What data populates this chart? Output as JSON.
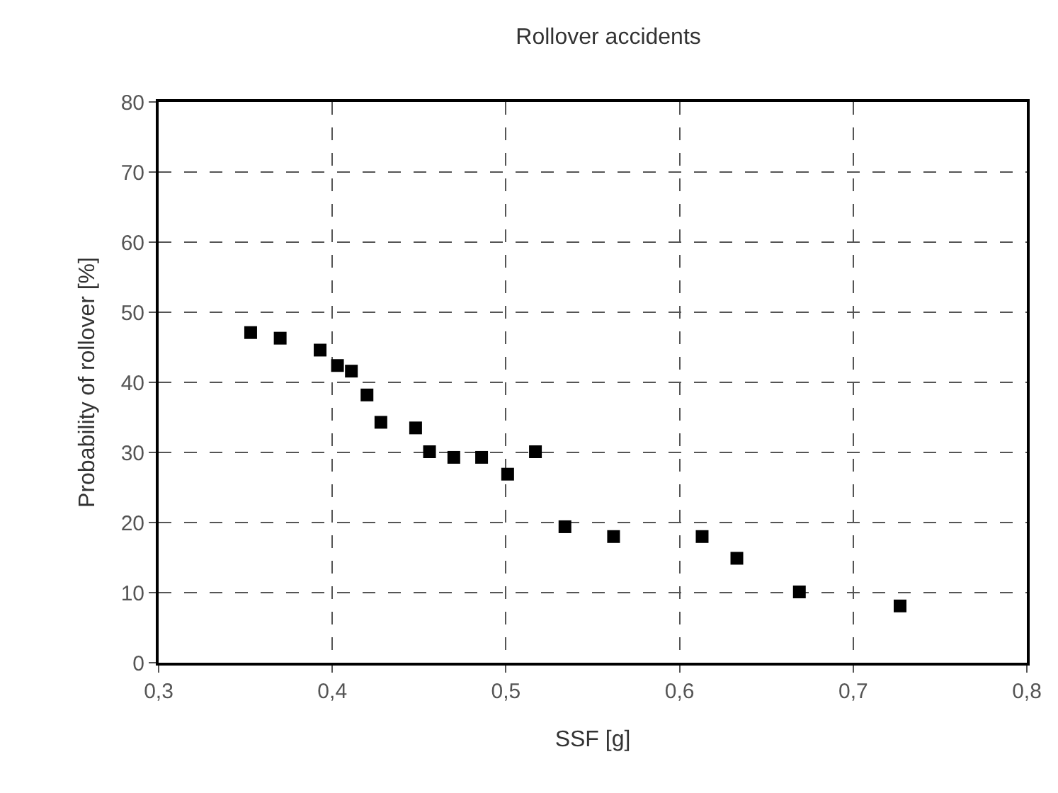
{
  "chart_data": {
    "type": "scatter",
    "title": "Rollover accidents",
    "xlabel": "SSF [g]",
    "ylabel": "Probability of rollover [%]",
    "x": [
      0.353,
      0.37,
      0.393,
      0.403,
      0.411,
      0.42,
      0.428,
      0.448,
      0.456,
      0.47,
      0.486,
      0.501,
      0.517,
      0.534,
      0.562,
      0.613,
      0.633,
      0.669,
      0.727
    ],
    "values": [
      47.1,
      46.3,
      44.6,
      42.4,
      41.6,
      38.2,
      34.3,
      33.5,
      30.1,
      29.3,
      29.3,
      26.9,
      30.1,
      19.4,
      18.0,
      18.0,
      14.9,
      10.1,
      8.1
    ],
    "color": "#000000",
    "marker": "square",
    "xlim": [
      0.3,
      0.8
    ],
    "xticks": [
      {
        "value": 0.3,
        "label": "0,3"
      },
      {
        "value": 0.4,
        "label": "0,4"
      },
      {
        "value": 0.5,
        "label": "0,5"
      },
      {
        "value": 0.6,
        "label": "0,6"
      },
      {
        "value": 0.7,
        "label": "0,7"
      },
      {
        "value": 0.8,
        "label": "0,8"
      }
    ],
    "ylim": [
      0,
      80
    ],
    "yticks": [
      0,
      10,
      20,
      30,
      40,
      50,
      60,
      70,
      80
    ],
    "grid": true,
    "line_style": "dashed"
  }
}
